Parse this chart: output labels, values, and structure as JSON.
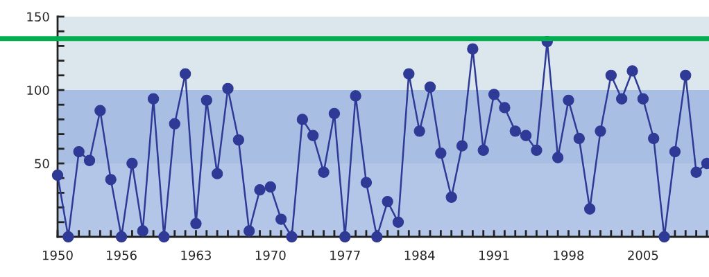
{
  "chart_data": {
    "type": "line",
    "x": [
      1950,
      1951,
      1952,
      1953,
      1954,
      1955,
      1956,
      1957,
      1958,
      1959,
      1960,
      1961,
      1962,
      1963,
      1964,
      1965,
      1966,
      1967,
      1968,
      1969,
      1970,
      1971,
      1972,
      1973,
      1974,
      1975,
      1976,
      1977,
      1978,
      1979,
      1980,
      1981,
      1982,
      1983,
      1984,
      1985,
      1986,
      1987,
      1988,
      1989,
      1990,
      1991,
      1992,
      1993,
      1994,
      1995,
      1996,
      1997,
      1998,
      1999,
      2000,
      2001,
      2002,
      2003,
      2004,
      2005,
      2006,
      2007,
      2008,
      2009,
      2010,
      2011
    ],
    "series": [
      {
        "color": "#2f3a96",
        "values": [
          42,
          0,
          58,
          52,
          86,
          39,
          0,
          50,
          4,
          94,
          0,
          77,
          111,
          9,
          93,
          43,
          101,
          66,
          4,
          32,
          34,
          12,
          0,
          80,
          69,
          44,
          84,
          0,
          96,
          37,
          0,
          24,
          10,
          111,
          72,
          102,
          57,
          27,
          62,
          128,
          59,
          97,
          88,
          72,
          69,
          59,
          133,
          54,
          93,
          67,
          19,
          72,
          110,
          94,
          113,
          94,
          67,
          0,
          58,
          110,
          44,
          50
        ]
      }
    ],
    "marker": "circle",
    "xlim": [
      1950,
      2011.2
    ],
    "ylim": [
      0,
      150
    ],
    "xticks": [
      {
        "value": 1950,
        "label": "1950"
      },
      {
        "value": 1951,
        "label": null
      },
      {
        "value": 1952,
        "label": null
      },
      {
        "value": 1953,
        "label": null
      },
      {
        "value": 1954,
        "label": null
      },
      {
        "value": 1955,
        "label": null
      },
      {
        "value": 1956,
        "label": "1956"
      },
      {
        "value": 1957,
        "label": null
      },
      {
        "value": 1958,
        "label": null
      },
      {
        "value": 1959,
        "label": null
      },
      {
        "value": 1960,
        "label": null
      },
      {
        "value": 1961,
        "label": null
      },
      {
        "value": 1962,
        "label": null
      },
      {
        "value": 1963,
        "label": "1963"
      },
      {
        "value": 1964,
        "label": null
      },
      {
        "value": 1965,
        "label": null
      },
      {
        "value": 1966,
        "label": null
      },
      {
        "value": 1967,
        "label": null
      },
      {
        "value": 1968,
        "label": null
      },
      {
        "value": 1969,
        "label": null
      },
      {
        "value": 1970,
        "label": "1970"
      },
      {
        "value": 1971,
        "label": null
      },
      {
        "value": 1972,
        "label": null
      },
      {
        "value": 1973,
        "label": null
      },
      {
        "value": 1974,
        "label": null
      },
      {
        "value": 1975,
        "label": null
      },
      {
        "value": 1976,
        "label": null
      },
      {
        "value": 1977,
        "label": "1977"
      },
      {
        "value": 1978,
        "label": null
      },
      {
        "value": 1979,
        "label": null
      },
      {
        "value": 1980,
        "label": null
      },
      {
        "value": 1981,
        "label": null
      },
      {
        "value": 1982,
        "label": null
      },
      {
        "value": 1983,
        "label": null
      },
      {
        "value": 1984,
        "label": "1984"
      },
      {
        "value": 1985,
        "label": null
      },
      {
        "value": 1986,
        "label": null
      },
      {
        "value": 1987,
        "label": null
      },
      {
        "value": 1988,
        "label": null
      },
      {
        "value": 1989,
        "label": null
      },
      {
        "value": 1990,
        "label": null
      },
      {
        "value": 1991,
        "label": "1991"
      },
      {
        "value": 1992,
        "label": null
      },
      {
        "value": 1993,
        "label": null
      },
      {
        "value": 1994,
        "label": null
      },
      {
        "value": 1995,
        "label": null
      },
      {
        "value": 1996,
        "label": null
      },
      {
        "value": 1997,
        "label": null
      },
      {
        "value": 1998,
        "label": "1998"
      },
      {
        "value": 1999,
        "label": null
      },
      {
        "value": 2000,
        "label": null
      },
      {
        "value": 2001,
        "label": null
      },
      {
        "value": 2002,
        "label": null
      },
      {
        "value": 2003,
        "label": null
      },
      {
        "value": 2004,
        "label": null
      },
      {
        "value": 2005,
        "label": "2005"
      },
      {
        "value": 2006,
        "label": null
      },
      {
        "value": 2007,
        "label": null
      },
      {
        "value": 2008,
        "label": null
      },
      {
        "value": 2009,
        "label": null
      },
      {
        "value": 2010,
        "label": null
      },
      {
        "value": 2011,
        "label": null
      }
    ],
    "yticks": [
      {
        "value": 10,
        "label": null
      },
      {
        "value": 20,
        "label": null
      },
      {
        "value": 30,
        "label": null
      },
      {
        "value": 40,
        "label": null
      },
      50,
      {
        "value": 60,
        "label": null
      },
      {
        "value": 70,
        "label": null
      },
      {
        "value": 80,
        "label": null
      },
      {
        "value": 90,
        "label": null
      },
      100,
      {
        "value": 110,
        "label": null
      },
      {
        "value": 120,
        "label": null
      },
      {
        "value": 130,
        "label": null
      },
      {
        "value": 140,
        "label": null
      },
      150
    ],
    "bands": [
      {
        "axis": "y",
        "from": 0,
        "to": 50,
        "color": "#b3c6e8"
      },
      {
        "axis": "y",
        "from": 50,
        "to": 100,
        "color": "#a8bee2"
      },
      {
        "axis": "y",
        "from": 100,
        "to": 150,
        "color": "#dbe7ec"
      }
    ],
    "ref_lines": [
      {
        "axis": "y",
        "value": 135,
        "color": "#00b050",
        "line_style": "solid"
      }
    ]
  }
}
